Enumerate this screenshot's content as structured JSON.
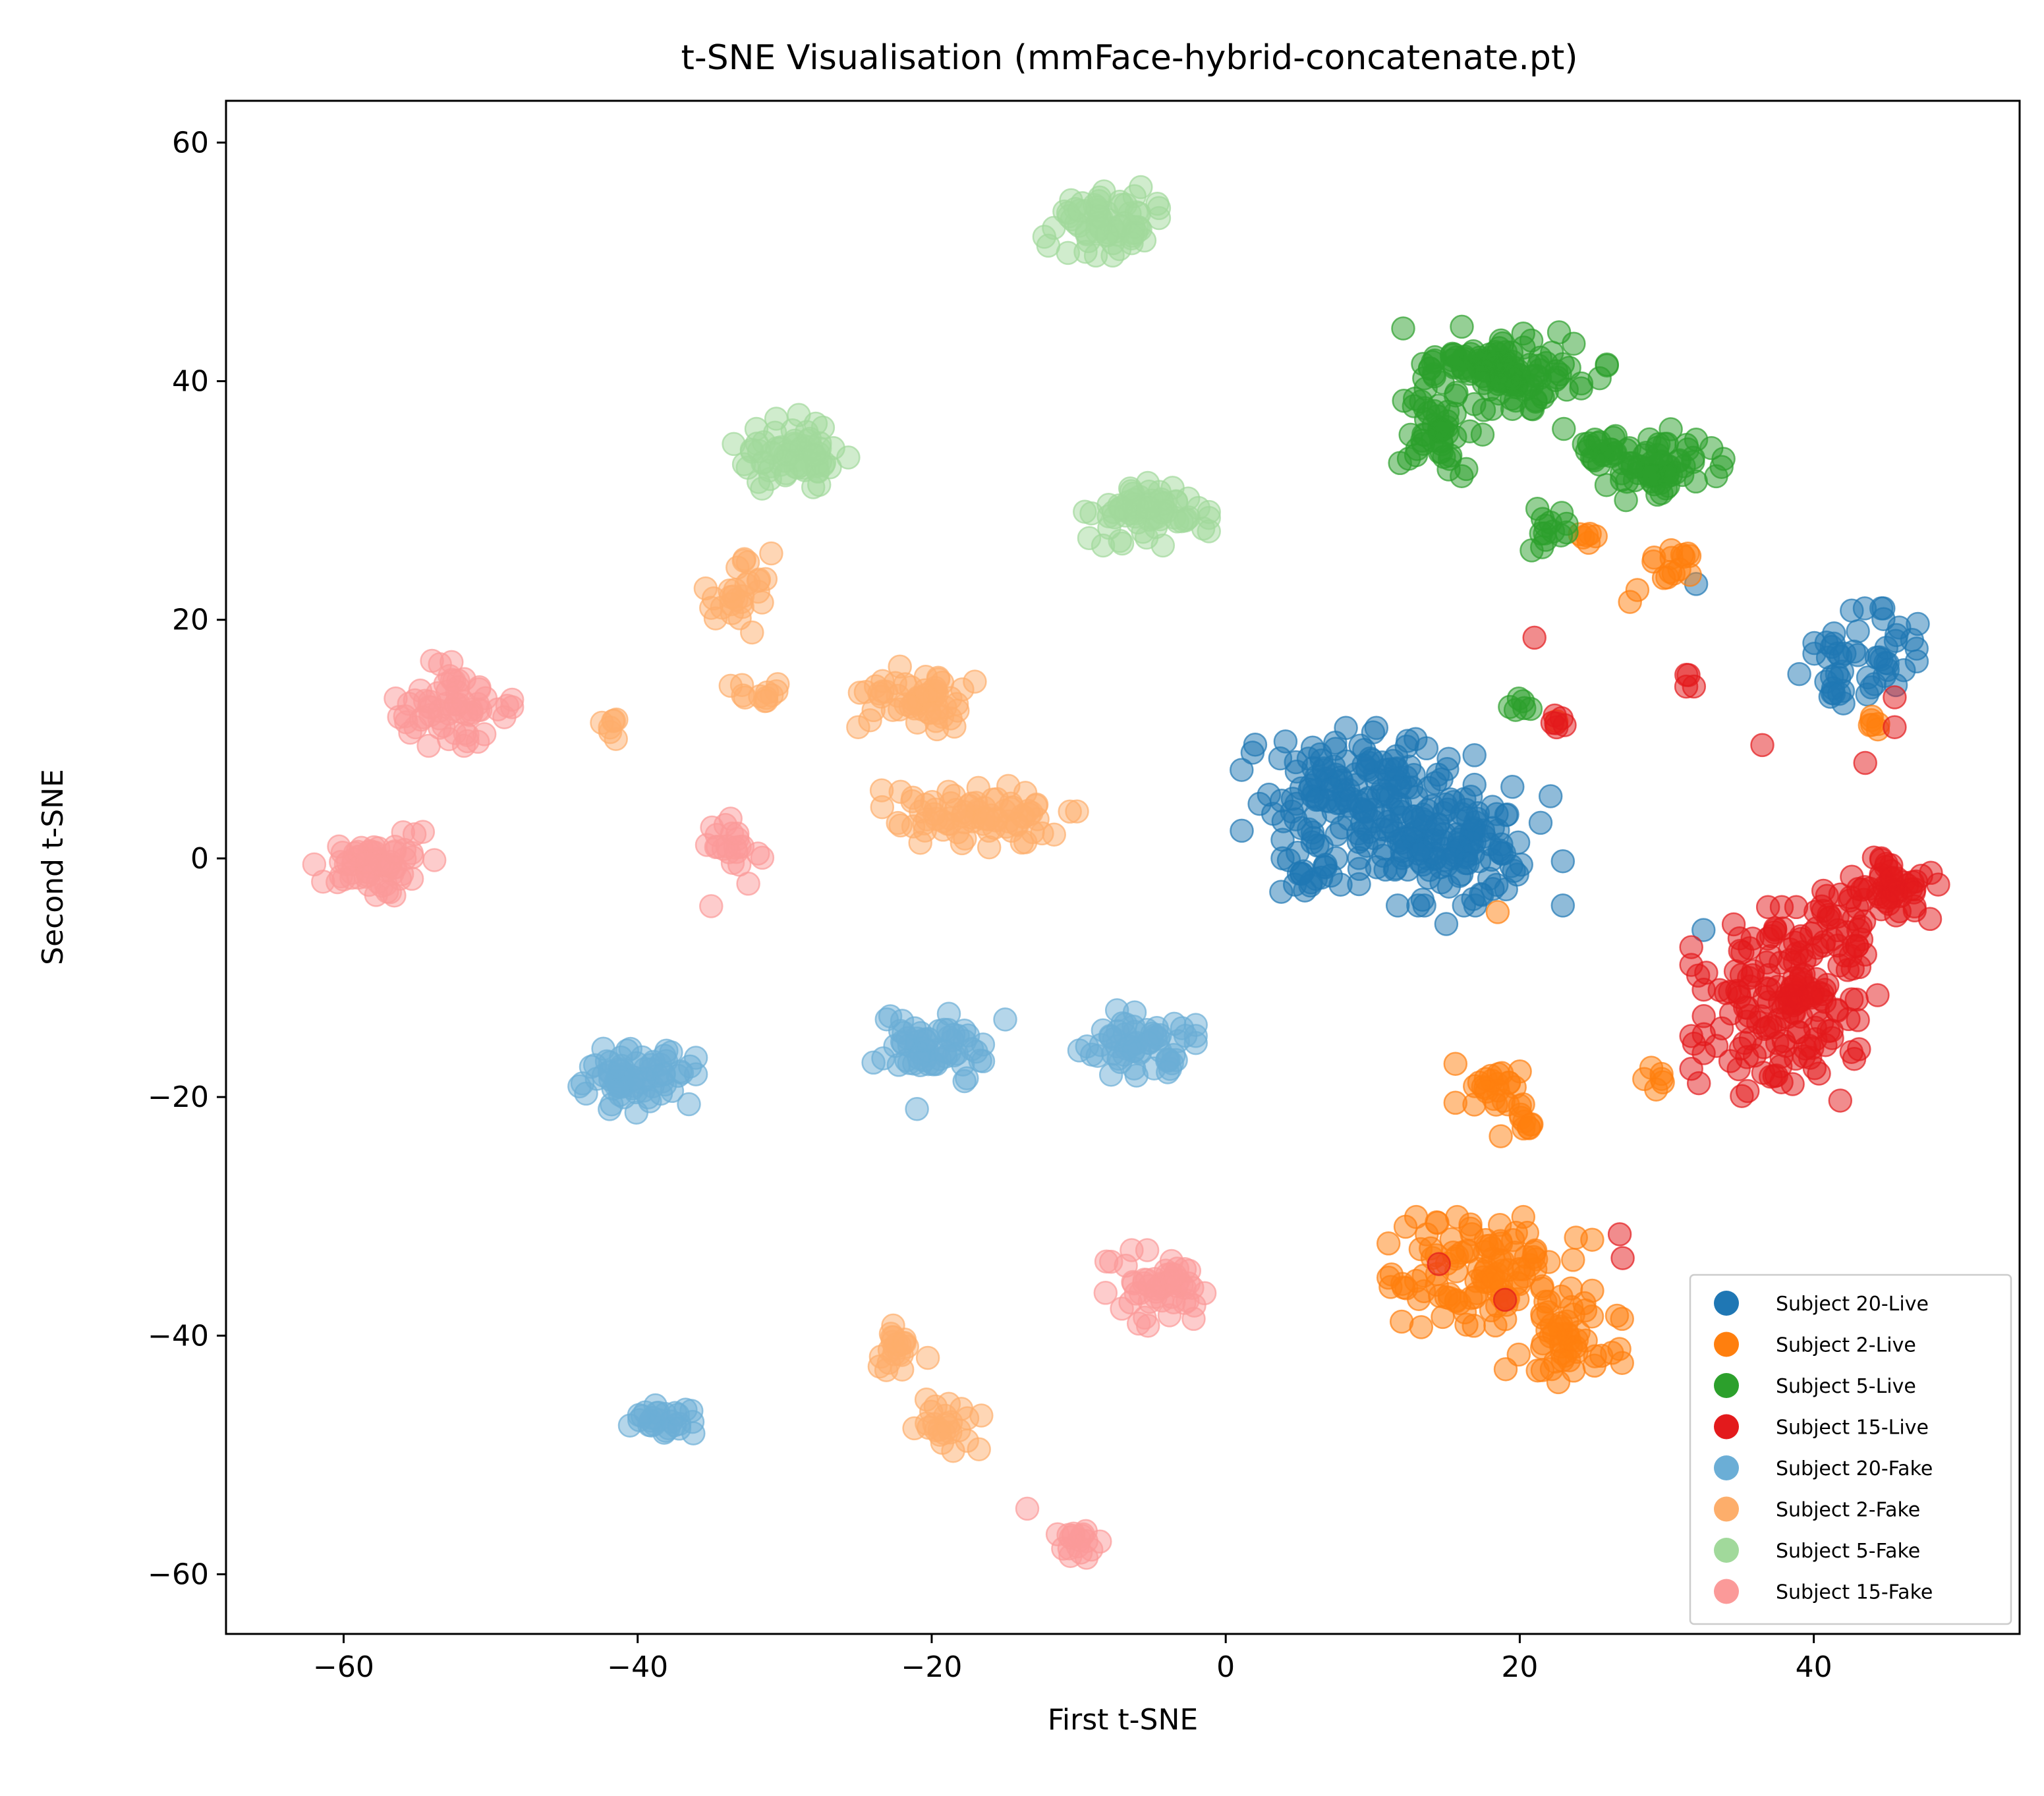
{
  "chart_data": {
    "type": "scatter",
    "title": "t-SNE Visualisation (mmFace-hybrid-concatenate.pt)",
    "xlabel": "First t-SNE",
    "ylabel": "Second t-SNE",
    "xlim": [
      -68,
      54
    ],
    "ylim": [
      -65,
      63.5
    ],
    "x_ticks": [
      -60,
      -40,
      -20,
      0,
      20,
      40
    ],
    "y_ticks": [
      -60,
      -40,
      -20,
      0,
      20,
      40,
      60
    ],
    "x_tick_labels": [
      "−60",
      "−40",
      "−20",
      "0",
      "20",
      "40"
    ],
    "y_tick_labels": [
      "−60",
      "−40",
      "−20",
      "0",
      "20",
      "40",
      "60"
    ],
    "grid": false,
    "legend_position": "lower-right",
    "marker_alpha": 0.5,
    "series": [
      {
        "name": "Subject 20-Live",
        "color": "#1f77b4",
        "clusters": [
          {
            "cx": 9,
            "cy": 5,
            "sx": 4,
            "sy": 3,
            "n": 170
          },
          {
            "cx": 16,
            "cy": 1,
            "sx": 3.5,
            "sy": 2.5,
            "n": 110
          },
          {
            "cx": 5,
            "cy": -1,
            "sx": 1.5,
            "sy": 1.2,
            "n": 20
          },
          {
            "cx": 44,
            "cy": 17,
            "sx": 2,
            "sy": 2,
            "n": 40
          },
          {
            "cx": 41,
            "cy": 14,
            "sx": 1.5,
            "sy": 1,
            "n": 12
          }
        ],
        "points": [
          [
            32,
            23
          ],
          [
            32.5,
            -6
          ],
          [
            15,
            -5.5
          ],
          [
            19.5,
            6
          ]
        ]
      },
      {
        "name": "Subject 2-Live",
        "color": "#ff7f0e",
        "clusters": [
          {
            "cx": 18,
            "cy": -35,
            "sx": 3.5,
            "sy": 2.5,
            "n": 110
          },
          {
            "cx": 23,
            "cy": -40,
            "sx": 2,
            "sy": 2,
            "n": 55
          },
          {
            "cx": 18,
            "cy": -19,
            "sx": 1.2,
            "sy": 0.9,
            "n": 22
          },
          {
            "cx": 20,
            "cy": -22,
            "sx": 0.8,
            "sy": 0.7,
            "n": 12
          },
          {
            "cx": 30.5,
            "cy": 24,
            "sx": 0.8,
            "sy": 1.2,
            "n": 14
          },
          {
            "cx": 29.5,
            "cy": -18.5,
            "sx": 0.6,
            "sy": 0.6,
            "n": 6
          },
          {
            "cx": 25,
            "cy": 27,
            "sx": 0.7,
            "sy": 0.4,
            "n": 6
          },
          {
            "cx": 44,
            "cy": 11.5,
            "sx": 0.6,
            "sy": 0.6,
            "n": 6
          }
        ],
        "points": [
          [
            27.5,
            21.5
          ],
          [
            28,
            22.5
          ],
          [
            22.5,
            11.5
          ],
          [
            18.5,
            -4.5
          ]
        ]
      },
      {
        "name": "Subject 5-Live",
        "color": "#2ca02c",
        "clusters": [
          {
            "cx": 19,
            "cy": 41,
            "sx": 3.5,
            "sy": 1.8,
            "n": 130
          },
          {
            "cx": 14.5,
            "cy": 36,
            "sx": 1.5,
            "sy": 2,
            "n": 45
          },
          {
            "cx": 29.5,
            "cy": 33,
            "sx": 2.2,
            "sy": 1.5,
            "n": 65
          },
          {
            "cx": 25.5,
            "cy": 34,
            "sx": 1.2,
            "sy": 1,
            "n": 18
          },
          {
            "cx": 22,
            "cy": 27,
            "sx": 0.6,
            "sy": 1.2,
            "n": 14
          },
          {
            "cx": 20,
            "cy": 13,
            "sx": 0.5,
            "sy": 0.4,
            "n": 6
          }
        ],
        "points": [
          [
            23,
            36
          ]
        ]
      },
      {
        "name": "Subject 15-Live",
        "color": "#e31a1c",
        "clusters": [
          {
            "cx": 38,
            "cy": -12,
            "sx": 3.2,
            "sy": 4,
            "n": 170
          },
          {
            "cx": 44.5,
            "cy": -2.5,
            "sx": 2,
            "sy": 1.3,
            "n": 55
          },
          {
            "cx": 41.5,
            "cy": -6,
            "sx": 1.2,
            "sy": 1.5,
            "n": 18
          },
          {
            "cx": 22.5,
            "cy": 11.5,
            "sx": 0.5,
            "sy": 0.5,
            "n": 6
          },
          {
            "cx": 31.5,
            "cy": 15,
            "sx": 0.3,
            "sy": 0.4,
            "n": 4
          }
        ],
        "points": [
          [
            21,
            18.5
          ],
          [
            36.5,
            9.5
          ],
          [
            43.5,
            8
          ],
          [
            45.5,
            13.5
          ],
          [
            45.5,
            11
          ],
          [
            26.8,
            -31.5
          ],
          [
            27,
            -33.5
          ],
          [
            14.5,
            -34
          ],
          [
            19,
            -37
          ],
          [
            35.5,
            -19.5
          ],
          [
            41.8,
            -20.3
          ]
        ]
      },
      {
        "name": "Subject 20-Fake",
        "color": "#6baed6",
        "clusters": [
          {
            "cx": -40,
            "cy": -18.5,
            "sx": 2,
            "sy": 1.5,
            "n": 75
          },
          {
            "cx": -20,
            "cy": -15.5,
            "sx": 2,
            "sy": 1.6,
            "n": 60
          },
          {
            "cx": -6,
            "cy": -15.5,
            "sx": 2,
            "sy": 1.4,
            "n": 60
          },
          {
            "cx": -38.5,
            "cy": -47,
            "sx": 1.3,
            "sy": 0.6,
            "n": 28
          }
        ],
        "points": [
          [
            -15,
            -13.5
          ],
          [
            -16.5,
            -17
          ],
          [
            -21,
            -21
          ]
        ]
      },
      {
        "name": "Subject 2-Fake",
        "color": "#fdae6b",
        "clusters": [
          {
            "cx": -21,
            "cy": 13.5,
            "sx": 2,
            "sy": 1.8,
            "n": 55
          },
          {
            "cx": -17,
            "cy": 3.5,
            "sx": 3.5,
            "sy": 1.3,
            "n": 80
          },
          {
            "cx": -33,
            "cy": 22.5,
            "sx": 1.2,
            "sy": 1.8,
            "n": 28
          },
          {
            "cx": -31.5,
            "cy": 14,
            "sx": 1.1,
            "sy": 0.6,
            "n": 12
          },
          {
            "cx": -42,
            "cy": 11,
            "sx": 0.6,
            "sy": 0.5,
            "n": 7
          },
          {
            "cx": -22,
            "cy": -41,
            "sx": 1.2,
            "sy": 1,
            "n": 22
          },
          {
            "cx": -19,
            "cy": -47.5,
            "sx": 1.2,
            "sy": 1.3,
            "n": 25
          }
        ],
        "points": [
          [
            -35,
            21
          ],
          [
            -25,
            11
          ]
        ]
      },
      {
        "name": "Subject 5-Fake",
        "color": "#a1d99b",
        "clusters": [
          {
            "cx": -8.5,
            "cy": 53.5,
            "sx": 2,
            "sy": 1.5,
            "n": 70
          },
          {
            "cx": -29.5,
            "cy": 34,
            "sx": 2,
            "sy": 1.6,
            "n": 70
          },
          {
            "cx": -5.5,
            "cy": 29,
            "sx": 2.2,
            "sy": 1.4,
            "n": 70
          }
        ],
        "points": []
      },
      {
        "name": "Subject 15-Fake",
        "color": "#fb9a99",
        "clusters": [
          {
            "cx": -57.5,
            "cy": -0.5,
            "sx": 2,
            "sy": 1.4,
            "n": 65
          },
          {
            "cx": -52.5,
            "cy": 13,
            "sx": 2,
            "sy": 1.8,
            "n": 65
          },
          {
            "cx": -5,
            "cy": -36,
            "sx": 1.8,
            "sy": 1.6,
            "n": 55
          },
          {
            "cx": -33.5,
            "cy": 1,
            "sx": 1,
            "sy": 1.6,
            "n": 22
          },
          {
            "cx": -10,
            "cy": -57,
            "sx": 1,
            "sy": 0.9,
            "n": 18
          }
        ],
        "points": [
          [
            -62,
            -0.5
          ],
          [
            -35,
            -4
          ],
          [
            -13.5,
            -54.5
          ]
        ]
      }
    ]
  }
}
